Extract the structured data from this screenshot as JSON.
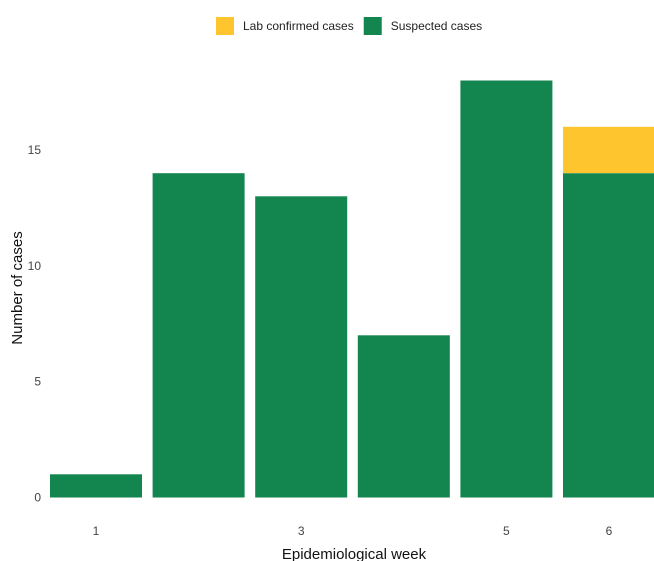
{
  "chart_data": {
    "type": "bar",
    "stacked": true,
    "categories": [
      "1",
      "2",
      "3",
      "4",
      "5",
      "6"
    ],
    "x_tick_labels": [
      "1",
      "3",
      "5",
      "6"
    ],
    "series": [
      {
        "name": "Suspected cases",
        "values": [
          1,
          14,
          13,
          7,
          18,
          14
        ],
        "color": "#138650"
      },
      {
        "name": "Lab confirmed cases",
        "values": [
          0,
          0,
          0,
          0,
          0,
          2
        ],
        "color": "#FEC52E"
      }
    ],
    "legend": {
      "position": "top",
      "order": [
        "Lab confirmed cases",
        "Suspected cases"
      ]
    },
    "xlabel": "Epidemiological week",
    "ylabel": "Number of cases",
    "ylim": [
      0,
      18
    ],
    "y_ticks": [
      0,
      5,
      10,
      15
    ],
    "grid": false
  }
}
